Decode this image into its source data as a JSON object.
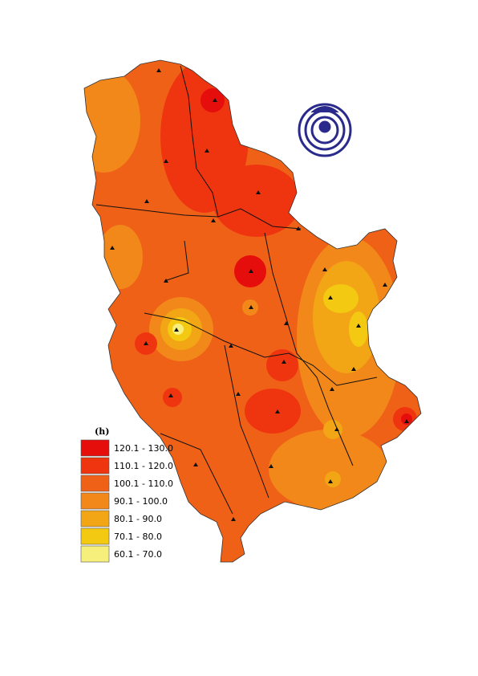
{
  "legend": {
    "title": "(h)",
    "items": [
      {
        "label": "120.1 - 130.0",
        "color": "#e60d0d"
      },
      {
        "label": "110.1 - 120.0",
        "color": "#ef3510"
      },
      {
        "label": "100.1 - 110.0",
        "color": "#f06118"
      },
      {
        "label": "90.1 - 100.0",
        "color": "#f2871a"
      },
      {
        "label": "80.1 - 90.0",
        "color": "#f3a615"
      },
      {
        "label": "70.1 - 80.0",
        "color": "#f3c912"
      },
      {
        "label": "60.1 - 70.0",
        "color": "#f6ef7c"
      }
    ]
  }
}
